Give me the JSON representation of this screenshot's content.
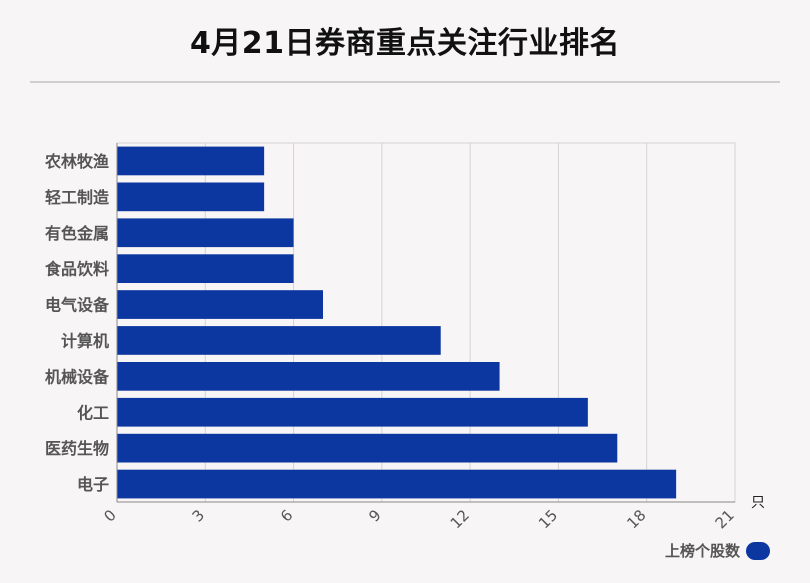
{
  "chart_data": {
    "type": "bar",
    "orientation": "horizontal",
    "title": "4月21日券商重点关注行业排名",
    "categories": [
      "农林牧渔",
      "轻工制造",
      "有色金属",
      "食品饮料",
      "电气设备",
      "计算机",
      "机械设备",
      "化工",
      "医药生物",
      "电子"
    ],
    "series": [
      {
        "name": "上榜个股数",
        "values": [
          5,
          5,
          6,
          6,
          7,
          11,
          13,
          16,
          17,
          19
        ]
      }
    ],
    "x_ticks": [
      "0",
      "3",
      "6",
      "9",
      "12",
      "15",
      "18",
      "21"
    ],
    "xlim": [
      0,
      21
    ],
    "x_unit": "只",
    "grid": true,
    "legend_position": "bottom-right",
    "bar_color": "#0d37a0"
  }
}
